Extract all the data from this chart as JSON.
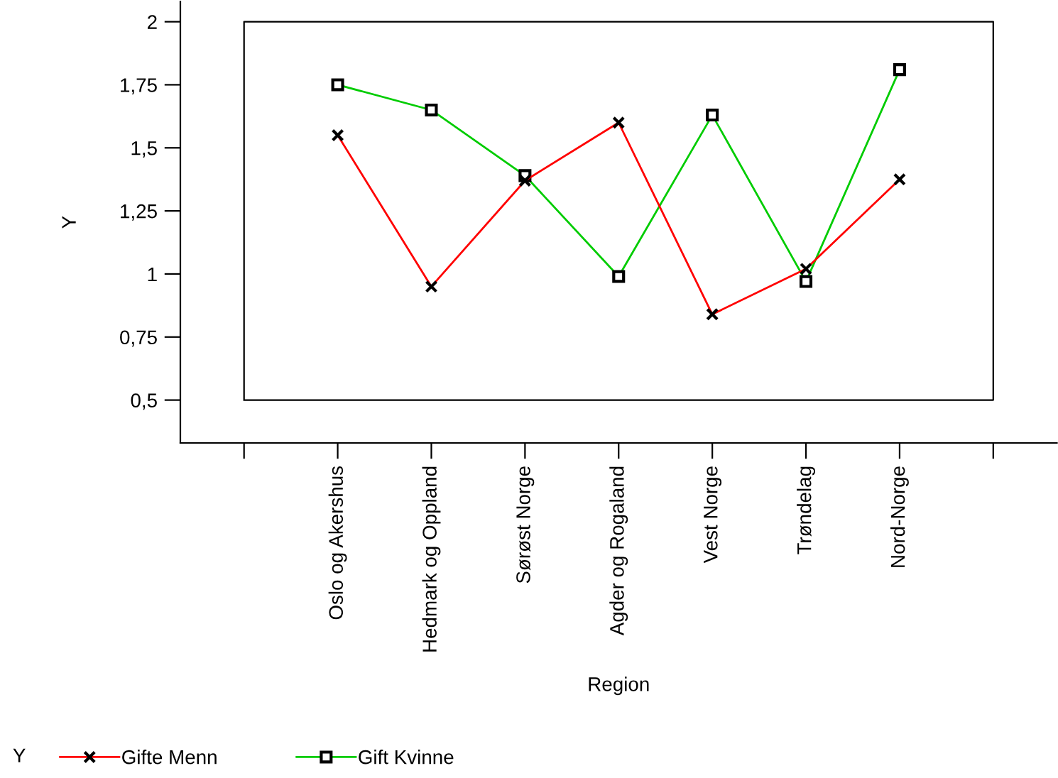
{
  "chart_data": {
    "type": "line",
    "xlabel": "Region",
    "ylabel": "Y",
    "legend_title": "Y",
    "legend": "bottom left",
    "categories": [
      "Oslo og Akershus",
      "Hedmark og Oppland",
      "Sørøst Norge",
      "Agder og Rogaland",
      "Vest Norge",
      "Trøndelag",
      "Nord-Norge"
    ],
    "series": [
      {
        "name": "Gifte Menn",
        "color": "#ff0000",
        "marker": "cross",
        "values": [
          1.55,
          0.95,
          1.37,
          1.6,
          0.84,
          1.02,
          1.375
        ]
      },
      {
        "name": "Gift Kvinne",
        "color": "#00cc00",
        "marker": "square",
        "values": [
          1.75,
          1.65,
          1.39,
          0.99,
          1.63,
          0.97,
          1.81
        ]
      }
    ],
    "ylim": [
      0.33,
      2.08
    ],
    "yticks": [
      {
        "value": 0.5,
        "label": "0,5"
      },
      {
        "value": 0.75,
        "label": "0,75"
      },
      {
        "value": 1,
        "label": "1"
      },
      {
        "value": 1.25,
        "label": "1,25"
      },
      {
        "value": 1.5,
        "label": "1,5"
      },
      {
        "value": 1.75,
        "label": "1,75"
      },
      {
        "value": 2,
        "label": "2"
      }
    ],
    "grid": false
  }
}
